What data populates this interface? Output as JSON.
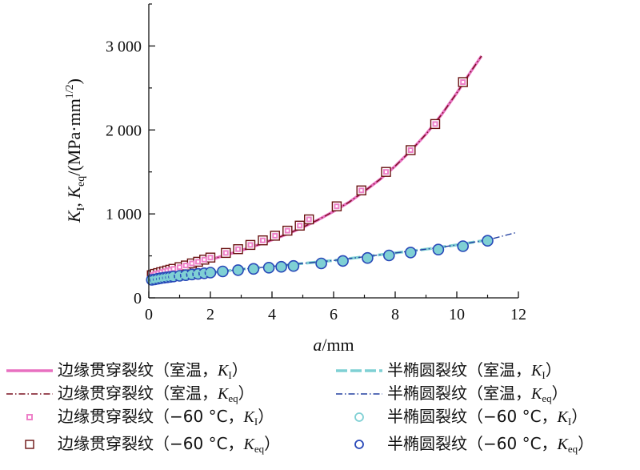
{
  "chart_data": {
    "type": "line",
    "x_title": {
      "var": "a",
      "unit": "/mm"
    },
    "y_title": {
      "k": "K",
      "k_sub": "I",
      "sep": ", ",
      "keq": "K",
      "keq_sub": "eq",
      "unit": "/(MPa·mm",
      "unit_sup": "1/2",
      "unit_close": ")"
    },
    "xlim": [
      0,
      12
    ],
    "ylim": [
      0,
      3500
    ],
    "x_ticks": [
      0,
      2,
      4,
      6,
      8,
      10,
      12
    ],
    "x_tick_labels": [
      "0",
      "2",
      "4",
      "6",
      "8",
      "10",
      "12"
    ],
    "y_ticks": [
      0,
      1000,
      2000,
      3000
    ],
    "y_tick_labels": [
      "0",
      "1 000",
      "2 000",
      "3 000"
    ],
    "grid": false,
    "legend": {
      "placement": "bottom",
      "entries": [
        {
          "id": "edge_rt_ki",
          "pre": "边缘贯穿裂纹（室温，",
          "k": "K",
          "sub": "I",
          "post": "）"
        },
        {
          "id": "semi_rt_ki",
          "pre": "半椭圆裂纹（室温，",
          "k": "K",
          "sub": "I",
          "post": "）"
        },
        {
          "id": "edge_rt_keq",
          "pre": "边缘贯穿裂纹（室温，",
          "k": "K",
          "sub": "eq",
          "post": "）"
        },
        {
          "id": "semi_rt_keq",
          "pre": "半椭圆裂纹（室温，",
          "k": "K",
          "sub": "eq",
          "post": "）"
        },
        {
          "id": "edge_m60_ki",
          "pre": "边缘贯穿裂纹（−60 °C，",
          "k": "K",
          "sub": "I",
          "post": "）"
        },
        {
          "id": "semi_m60_ki",
          "pre": "半椭圆裂纹（−60 °C，",
          "k": "K",
          "sub": "I",
          "post": "）"
        },
        {
          "id": "edge_m60_keq",
          "pre": "边缘贯穿裂纹（−60 °C，",
          "k": "K",
          "sub": "eq",
          "post": "）"
        },
        {
          "id": "semi_m60_keq",
          "pre": "半椭圆裂纹（−60 °C，",
          "k": "K",
          "sub": "eq",
          "post": "）"
        }
      ]
    },
    "series": [
      {
        "id": "edge_rt_ki",
        "kind": "line",
        "style": "solid",
        "color": "#e870c0",
        "width": 3.5,
        "x": [
          0,
          0.5,
          1,
          1.5,
          2,
          2.5,
          3,
          3.5,
          4,
          4.5,
          5,
          5.5,
          6,
          6.5,
          7,
          7.5,
          8,
          8.5,
          9,
          9.5,
          10,
          10.5,
          10.8
        ],
        "y": [
          275,
          315,
          360,
          405,
          455,
          510,
          565,
          625,
          690,
          760,
          840,
          930,
          1030,
          1140,
          1270,
          1410,
          1570,
          1750,
          1950,
          2180,
          2440,
          2720,
          2880
        ]
      },
      {
        "id": "edge_rt_keq",
        "kind": "line",
        "style": "dashdot",
        "color": "#7a1020",
        "width": 1.4,
        "x": [
          0,
          0.5,
          1,
          1.5,
          2,
          2.5,
          3,
          3.5,
          4,
          4.5,
          5,
          5.5,
          6,
          6.5,
          7,
          7.5,
          8,
          8.5,
          9,
          9.5,
          10,
          10.5,
          10.8
        ],
        "y": [
          275,
          315,
          360,
          405,
          455,
          510,
          565,
          625,
          690,
          760,
          840,
          930,
          1030,
          1140,
          1270,
          1410,
          1570,
          1750,
          1950,
          2180,
          2440,
          2720,
          2880
        ]
      },
      {
        "id": "semi_rt_ki",
        "kind": "line",
        "style": "longdash",
        "color": "#7fd0d4",
        "width": 3.5,
        "x": [
          0,
          0.5,
          1,
          2,
          3,
          4,
          5,
          6,
          7,
          8,
          9,
          10,
          11
        ],
        "y": [
          210,
          240,
          265,
          300,
          340,
          375,
          410,
          445,
          490,
          535,
          580,
          630,
          690
        ]
      },
      {
        "id": "semi_rt_keq",
        "kind": "line",
        "style": "dashdot",
        "color": "#2340a0",
        "width": 1.4,
        "x": [
          0,
          0.5,
          1,
          2,
          3,
          4,
          5,
          6,
          7,
          8,
          9,
          10,
          11,
          11.9
        ],
        "y": [
          210,
          240,
          265,
          300,
          340,
          375,
          410,
          445,
          490,
          535,
          580,
          630,
          690,
          775
        ]
      },
      {
        "id": "edge_m60_keq",
        "kind": "marker",
        "marker": "square",
        "size": 11,
        "stroke": "#6a1010",
        "fill": "#ffffff",
        "strokeWidth": 1.4,
        "x": [
          0.1,
          0.2,
          0.3,
          0.4,
          0.5,
          0.6,
          0.7,
          0.8,
          1.0,
          1.2,
          1.4,
          1.6,
          1.8,
          2.0,
          2.5,
          2.9,
          3.3,
          3.7,
          4.1,
          4.5,
          4.9,
          5.2,
          6.1,
          6.9,
          7.7,
          8.5,
          9.3,
          10.2
        ],
        "y": [
          270,
          285,
          295,
          305,
          315,
          325,
          335,
          345,
          365,
          385,
          410,
          430,
          455,
          480,
          535,
          580,
          630,
          685,
          740,
          800,
          860,
          935,
          1090,
          1280,
          1500,
          1760,
          2070,
          2570
        ]
      },
      {
        "id": "edge_m60_ki",
        "kind": "marker",
        "marker": "square",
        "size": 5,
        "stroke": "#ee80c8",
        "fill": "#ffffff",
        "strokeWidth": 2,
        "x": [
          0.1,
          0.2,
          0.3,
          0.4,
          0.5,
          0.6,
          0.7,
          0.8,
          1.0,
          1.2,
          1.4,
          1.6,
          1.8,
          2.0,
          2.5,
          2.9,
          3.3,
          3.7,
          4.1,
          4.5,
          4.9,
          5.2,
          6.1,
          6.9,
          7.7,
          8.5,
          9.3,
          10.2
        ],
        "y": [
          270,
          285,
          295,
          305,
          315,
          325,
          335,
          345,
          365,
          385,
          410,
          430,
          455,
          480,
          535,
          580,
          630,
          685,
          740,
          800,
          860,
          935,
          1090,
          1280,
          1500,
          1760,
          2070,
          2570
        ]
      },
      {
        "id": "semi_m60_keq",
        "kind": "marker",
        "marker": "circle",
        "size": 6.5,
        "stroke": "#2848b8",
        "fill": "#7fd0d4",
        "strokeWidth": 1.6,
        "x": [
          0.1,
          0.2,
          0.3,
          0.4,
          0.5,
          0.6,
          0.7,
          0.8,
          1.0,
          1.2,
          1.4,
          1.6,
          1.8,
          2.0,
          2.4,
          2.9,
          3.4,
          3.9,
          4.3,
          4.7,
          5.6,
          6.3,
          7.1,
          7.8,
          8.5,
          9.4,
          10.2,
          11.0
        ],
        "y": [
          215,
          220,
          228,
          235,
          240,
          245,
          250,
          255,
          262,
          270,
          278,
          285,
          293,
          300,
          315,
          330,
          345,
          360,
          370,
          380,
          410,
          440,
          475,
          505,
          540,
          575,
          615,
          680
        ]
      },
      {
        "id": "semi_m60_ki",
        "kind": "marker",
        "marker": "circle",
        "size": 3.5,
        "stroke": "#7fd0d4",
        "fill": "none",
        "strokeWidth": 1.6,
        "x": [
          0.1,
          0.2,
          0.3,
          0.4,
          0.5,
          0.6,
          0.7,
          0.8,
          1.0,
          1.2,
          1.4,
          1.6,
          1.8,
          2.0,
          2.4,
          2.9,
          3.4,
          3.9,
          4.3,
          4.7,
          5.6,
          6.3,
          7.1,
          7.8,
          8.5,
          9.4,
          10.2,
          11.0
        ],
        "y": [
          215,
          220,
          228,
          235,
          240,
          245,
          250,
          255,
          262,
          270,
          278,
          285,
          293,
          300,
          315,
          330,
          345,
          360,
          370,
          380,
          410,
          440,
          475,
          505,
          540,
          575,
          615,
          680
        ]
      }
    ]
  }
}
